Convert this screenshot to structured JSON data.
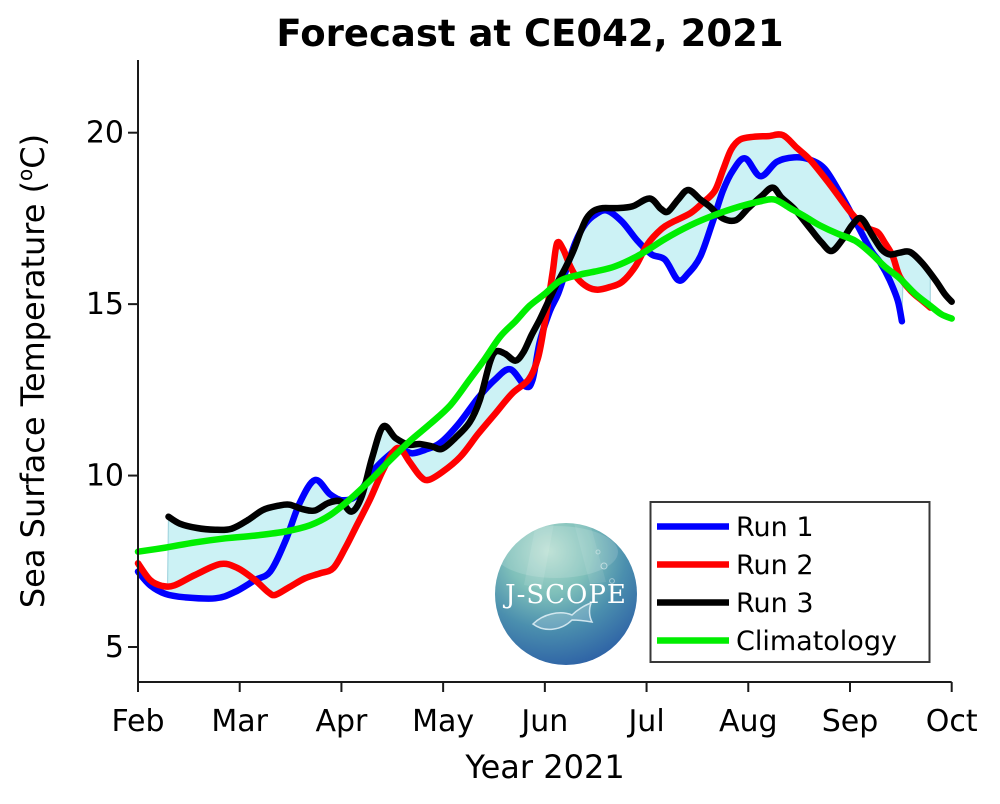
{
  "title": "Forecast at CE042, 2021",
  "axes": {
    "xlabel": "Year 2021",
    "ylabel_main": "Sea Surface Temperature (",
    "ylabel_sup": "o",
    "ylabel_close": "C)",
    "x_tick_labels": [
      "Feb",
      "Mar",
      "Apr",
      "May",
      "Jun",
      "Jul",
      "Aug",
      "Sep",
      "Oct"
    ],
    "x_tick_values": [
      2,
      3,
      4,
      5,
      6,
      7,
      8,
      9,
      10
    ],
    "y_tick_labels": [
      "5",
      "10",
      "15",
      "20"
    ],
    "y_tick_values": [
      5,
      10,
      15,
      20
    ],
    "spine_color": "#1a1a1a"
  },
  "legend": {
    "border_color": "#383838",
    "background": "#ffffff",
    "entries": [
      {
        "label": "Run 1",
        "color": "#0000ff"
      },
      {
        "label": "Run 2",
        "color": "#ff0000"
      },
      {
        "label": "Run 3",
        "color": "#000000"
      },
      {
        "label": "Climatology",
        "color": "#00ee00"
      }
    ]
  },
  "logo": {
    "text": "J-SCOPE"
  },
  "chart_data": {
    "type": "line",
    "title": "Forecast at CE042, 2021",
    "xlabel": "Year 2021",
    "ylabel": "Sea Surface Temperature (°C)",
    "x_unit": "month of 2021 (2=Feb, 10=Oct)",
    "xlim": [
      2,
      10
    ],
    "ylim": [
      4.0,
      22.1
    ],
    "y_ticks": [
      5,
      10,
      15,
      20
    ],
    "grid": false,
    "legend_position": "lower right",
    "fill_between": {
      "description": "light-cyan min/max envelope across Run 1-3",
      "color": "#ccf2f5",
      "edge_color": "rgba(140,200,212,0.7)"
    },
    "series": [
      {
        "name": "Run 1",
        "role": "run",
        "color": "#0000ff",
        "width": 6.5,
        "points": [
          [
            2.0,
            7.2
          ],
          [
            2.12,
            6.8
          ],
          [
            2.27,
            6.55
          ],
          [
            2.46,
            6.45
          ],
          [
            2.76,
            6.42
          ],
          [
            2.95,
            6.6
          ],
          [
            3.15,
            6.95
          ],
          [
            3.3,
            7.2
          ],
          [
            3.45,
            8.1
          ],
          [
            3.59,
            9.2
          ],
          [
            3.74,
            9.87
          ],
          [
            3.89,
            9.45
          ],
          [
            4.02,
            9.28
          ],
          [
            4.16,
            9.45
          ],
          [
            4.33,
            10.2
          ],
          [
            4.51,
            10.7
          ],
          [
            4.58,
            10.8
          ],
          [
            4.69,
            10.65
          ],
          [
            4.82,
            10.75
          ],
          [
            4.97,
            10.95
          ],
          [
            5.15,
            11.5
          ],
          [
            5.34,
            12.25
          ],
          [
            5.51,
            12.8
          ],
          [
            5.66,
            13.1
          ],
          [
            5.81,
            12.6
          ],
          [
            5.88,
            12.8
          ],
          [
            5.95,
            13.9
          ],
          [
            6.05,
            14.8
          ],
          [
            6.13,
            15.3
          ],
          [
            6.21,
            16.0
          ],
          [
            6.3,
            16.8
          ],
          [
            6.4,
            17.35
          ],
          [
            6.5,
            17.62
          ],
          [
            6.61,
            17.73
          ],
          [
            6.76,
            17.4
          ],
          [
            6.91,
            16.85
          ],
          [
            7.05,
            16.45
          ],
          [
            7.18,
            16.3
          ],
          [
            7.31,
            15.7
          ],
          [
            7.41,
            15.9
          ],
          [
            7.53,
            16.4
          ],
          [
            7.65,
            17.4
          ],
          [
            7.75,
            18.3
          ],
          [
            7.85,
            18.9
          ],
          [
            7.97,
            19.25
          ],
          [
            8.12,
            18.73
          ],
          [
            8.28,
            19.15
          ],
          [
            8.45,
            19.28
          ],
          [
            8.6,
            19.22
          ],
          [
            8.75,
            18.95
          ],
          [
            8.9,
            18.25
          ],
          [
            9.03,
            17.55
          ],
          [
            9.2,
            16.6
          ],
          [
            9.3,
            16.2
          ],
          [
            9.39,
            15.7
          ],
          [
            9.47,
            15.1
          ],
          [
            9.51,
            14.5
          ]
        ]
      },
      {
        "name": "Run 2",
        "role": "run",
        "color": "#ff0000",
        "width": 6.5,
        "points": [
          [
            2.0,
            7.44
          ],
          [
            2.12,
            6.95
          ],
          [
            2.24,
            6.78
          ],
          [
            2.36,
            6.8
          ],
          [
            2.56,
            7.1
          ],
          [
            2.81,
            7.42
          ],
          [
            2.98,
            7.3
          ],
          [
            3.15,
            6.95
          ],
          [
            3.28,
            6.6
          ],
          [
            3.35,
            6.52
          ],
          [
            3.49,
            6.75
          ],
          [
            3.64,
            7.0
          ],
          [
            3.79,
            7.15
          ],
          [
            3.92,
            7.3
          ],
          [
            4.04,
            7.9
          ],
          [
            4.16,
            8.6
          ],
          [
            4.28,
            9.3
          ],
          [
            4.4,
            10.1
          ],
          [
            4.51,
            10.7
          ],
          [
            4.58,
            10.78
          ],
          [
            4.67,
            10.4
          ],
          [
            4.77,
            10.0
          ],
          [
            4.85,
            9.87
          ],
          [
            4.99,
            10.1
          ],
          [
            5.17,
            10.55
          ],
          [
            5.34,
            11.2
          ],
          [
            5.51,
            11.8
          ],
          [
            5.68,
            12.4
          ],
          [
            5.84,
            12.8
          ],
          [
            5.93,
            13.4
          ],
          [
            5.99,
            14.3
          ],
          [
            6.04,
            15.2
          ],
          [
            6.08,
            16.0
          ],
          [
            6.12,
            16.78
          ],
          [
            6.18,
            16.6
          ],
          [
            6.25,
            16.1
          ],
          [
            6.32,
            15.75
          ],
          [
            6.42,
            15.5
          ],
          [
            6.52,
            15.42
          ],
          [
            6.64,
            15.5
          ],
          [
            6.76,
            15.65
          ],
          [
            6.89,
            16.1
          ],
          [
            7.01,
            16.75
          ],
          [
            7.15,
            17.2
          ],
          [
            7.26,
            17.4
          ],
          [
            7.43,
            17.65
          ],
          [
            7.55,
            17.95
          ],
          [
            7.67,
            18.3
          ],
          [
            7.75,
            18.9
          ],
          [
            7.83,
            19.5
          ],
          [
            7.92,
            19.8
          ],
          [
            8.05,
            19.88
          ],
          [
            8.2,
            19.9
          ],
          [
            8.34,
            19.93
          ],
          [
            8.48,
            19.55
          ],
          [
            8.61,
            19.2
          ],
          [
            8.8,
            18.5
          ],
          [
            9.0,
            17.7
          ],
          [
            9.15,
            17.25
          ],
          [
            9.27,
            17.1
          ],
          [
            9.34,
            16.8
          ],
          [
            9.42,
            16.4
          ],
          [
            9.49,
            15.8
          ],
          [
            9.61,
            15.35
          ],
          [
            9.71,
            15.1
          ],
          [
            9.79,
            14.9
          ]
        ]
      },
      {
        "name": "Run 3",
        "role": "run",
        "color": "#000000",
        "width": 6.5,
        "points": [
          [
            2.3,
            8.8
          ],
          [
            2.41,
            8.6
          ],
          [
            2.58,
            8.47
          ],
          [
            2.76,
            8.42
          ],
          [
            2.92,
            8.45
          ],
          [
            3.08,
            8.7
          ],
          [
            3.23,
            9.0
          ],
          [
            3.38,
            9.12
          ],
          [
            3.49,
            9.15
          ],
          [
            3.62,
            9.02
          ],
          [
            3.74,
            8.98
          ],
          [
            3.87,
            9.2
          ],
          [
            3.99,
            9.25
          ],
          [
            4.1,
            8.95
          ],
          [
            4.2,
            9.4
          ],
          [
            4.3,
            10.5
          ],
          [
            4.41,
            11.43
          ],
          [
            4.53,
            11.1
          ],
          [
            4.66,
            10.9
          ],
          [
            4.77,
            10.92
          ],
          [
            4.89,
            10.85
          ],
          [
            4.99,
            10.78
          ],
          [
            5.12,
            11.1
          ],
          [
            5.26,
            11.55
          ],
          [
            5.36,
            12.2
          ],
          [
            5.46,
            13.3
          ],
          [
            5.52,
            13.62
          ],
          [
            5.61,
            13.55
          ],
          [
            5.71,
            13.35
          ],
          [
            5.79,
            13.6
          ],
          [
            5.87,
            14.1
          ],
          [
            5.95,
            14.55
          ],
          [
            6.03,
            15.05
          ],
          [
            6.11,
            15.55
          ],
          [
            6.2,
            16.05
          ],
          [
            6.28,
            16.55
          ],
          [
            6.35,
            17.1
          ],
          [
            6.41,
            17.5
          ],
          [
            6.48,
            17.72
          ],
          [
            6.57,
            17.8
          ],
          [
            6.7,
            17.8
          ],
          [
            6.86,
            17.85
          ],
          [
            7.03,
            18.08
          ],
          [
            7.14,
            17.78
          ],
          [
            7.21,
            17.7
          ],
          [
            7.31,
            18.05
          ],
          [
            7.41,
            18.33
          ],
          [
            7.53,
            18.05
          ],
          [
            7.62,
            17.85
          ],
          [
            7.75,
            17.5
          ],
          [
            7.88,
            17.45
          ],
          [
            8.0,
            17.8
          ],
          [
            8.13,
            18.15
          ],
          [
            8.24,
            18.4
          ],
          [
            8.33,
            18.1
          ],
          [
            8.46,
            17.75
          ],
          [
            8.61,
            17.2
          ],
          [
            8.72,
            16.8
          ],
          [
            8.82,
            16.55
          ],
          [
            8.93,
            16.9
          ],
          [
            9.02,
            17.3
          ],
          [
            9.11,
            17.5
          ],
          [
            9.22,
            17.0
          ],
          [
            9.31,
            16.6
          ],
          [
            9.39,
            16.45
          ],
          [
            9.49,
            16.5
          ],
          [
            9.59,
            16.52
          ],
          [
            9.71,
            16.2
          ],
          [
            9.84,
            15.7
          ],
          [
            9.93,
            15.3
          ],
          [
            10.0,
            15.07
          ]
        ]
      },
      {
        "name": "Climatology",
        "role": "climatology",
        "color": "#00ee00",
        "width": 6.5,
        "points": [
          [
            2.0,
            7.78
          ],
          [
            2.27,
            7.9
          ],
          [
            2.56,
            8.05
          ],
          [
            2.86,
            8.17
          ],
          [
            3.15,
            8.25
          ],
          [
            3.45,
            8.37
          ],
          [
            3.69,
            8.55
          ],
          [
            3.89,
            8.85
          ],
          [
            4.08,
            9.3
          ],
          [
            4.28,
            9.85
          ],
          [
            4.48,
            10.45
          ],
          [
            4.67,
            11.0
          ],
          [
            4.87,
            11.5
          ],
          [
            5.07,
            12.05
          ],
          [
            5.26,
            12.8
          ],
          [
            5.41,
            13.4
          ],
          [
            5.56,
            14.05
          ],
          [
            5.71,
            14.5
          ],
          [
            5.85,
            14.95
          ],
          [
            6.0,
            15.3
          ],
          [
            6.15,
            15.68
          ],
          [
            6.33,
            15.85
          ],
          [
            6.49,
            15.95
          ],
          [
            6.69,
            16.1
          ],
          [
            6.94,
            16.45
          ],
          [
            7.18,
            16.9
          ],
          [
            7.43,
            17.3
          ],
          [
            7.67,
            17.6
          ],
          [
            7.92,
            17.85
          ],
          [
            8.12,
            18.0
          ],
          [
            8.26,
            18.05
          ],
          [
            8.41,
            17.8
          ],
          [
            8.56,
            17.55
          ],
          [
            8.7,
            17.3
          ],
          [
            8.88,
            17.05
          ],
          [
            9.05,
            16.85
          ],
          [
            9.2,
            16.5
          ],
          [
            9.34,
            16.1
          ],
          [
            9.49,
            15.75
          ],
          [
            9.64,
            15.3
          ],
          [
            9.79,
            14.95
          ],
          [
            9.9,
            14.7
          ],
          [
            10.0,
            14.58
          ]
        ]
      }
    ]
  }
}
